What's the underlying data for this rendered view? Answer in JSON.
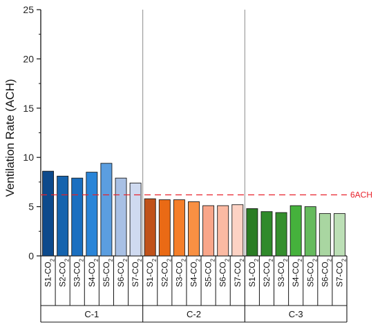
{
  "chart_data": {
    "type": "bar",
    "ylabel": "Ventilation Rate (ACH)",
    "ylim": [
      0,
      25
    ],
    "yticks": [
      0,
      5,
      10,
      15,
      20,
      25
    ],
    "groups": [
      {
        "name": "C-1",
        "categories": [
          "S1-CO2",
          "S2-CO2",
          "S3-CO2",
          "S4-CO2",
          "S5-CO2",
          "S6-CO2",
          "S7-CO2"
        ],
        "values": [
          8.6,
          8.1,
          7.9,
          8.5,
          9.4,
          7.9,
          7.4
        ],
        "colors": [
          "#0d4a8c",
          "#1664ae",
          "#1a6fc0",
          "#2a85d8",
          "#5b9ee0",
          "#a8c0e4",
          "#cfdaf0"
        ]
      },
      {
        "name": "C-2",
        "categories": [
          "S1-CO2",
          "S2-CO2",
          "S3-CO2",
          "S4-CO2",
          "S5-CO2",
          "S6-CO2",
          "S7-CO2"
        ],
        "values": [
          5.8,
          5.7,
          5.7,
          5.5,
          5.1,
          5.1,
          5.2
        ],
        "colors": [
          "#c0521a",
          "#ea6a15",
          "#f57f2a",
          "#f89043",
          "#f9a68a",
          "#fbbaa3",
          "#fcd2c4"
        ]
      },
      {
        "name": "C-3",
        "categories": [
          "S1-CO2",
          "S2-CO2",
          "S3-CO2",
          "S4-CO2",
          "S5-CO2",
          "S6-CO2",
          "S7-CO2"
        ],
        "values": [
          4.8,
          4.5,
          4.4,
          5.1,
          5.0,
          4.3,
          4.3
        ],
        "colors": [
          "#2a7d24",
          "#2f8a2b",
          "#358f2e",
          "#45b23c",
          "#66bb5e",
          "#a9d6a1",
          "#bcdfb6"
        ]
      }
    ],
    "reference_line": {
      "value": 6.2,
      "label": "6ACH",
      "color": "#e8202a",
      "style": "dashed"
    },
    "grid": false,
    "legend": "none"
  }
}
